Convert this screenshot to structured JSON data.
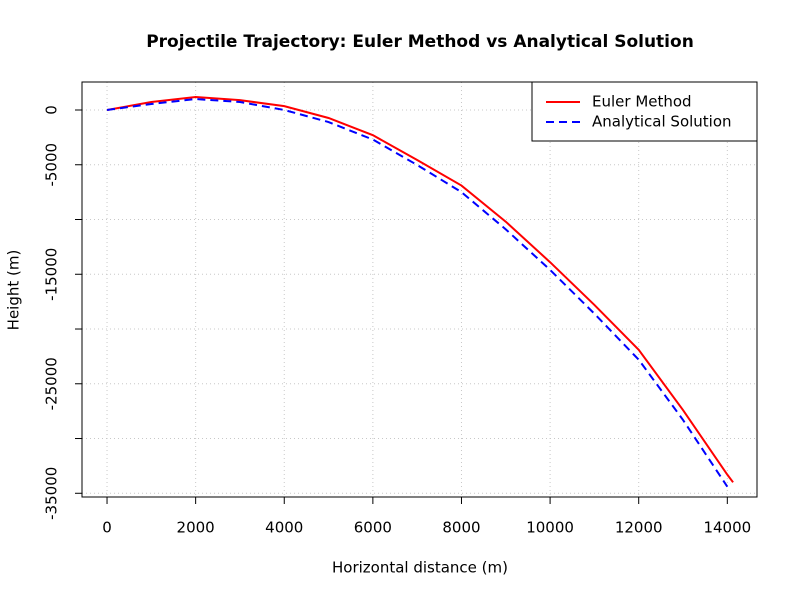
{
  "chart_data": {
    "type": "line",
    "title": "Projectile Trajectory: Euler Method vs Analytical Solution",
    "x_label": "Horizontal distance (m)",
    "y_label": "Height (m)",
    "xlim": [
      -565,
      14670
    ],
    "ylim": [
      -35340,
      2557
    ],
    "xticks": [
      0,
      2000,
      4000,
      6000,
      8000,
      10000,
      12000,
      14000
    ],
    "yticks": [
      0,
      -5000,
      -15000,
      -25000,
      -35000
    ],
    "minor_yticks": [
      -10000,
      -20000,
      -30000
    ],
    "grid": true,
    "legend": "top-right",
    "series": [
      {
        "name": "Euler Method",
        "color": "#ff0000",
        "dash": "solid",
        "x": [
          0,
          1000,
          2000,
          3000,
          4000,
          5000,
          6000,
          7000,
          8000,
          9000,
          10000,
          11000,
          12000,
          13000,
          14000,
          14130
        ],
        "values": [
          0,
          730,
          1190,
          900,
          350,
          -730,
          -2300,
          -4570,
          -6900,
          -10200,
          -13900,
          -17800,
          -21900,
          -27400,
          -33300,
          -34000
        ]
      },
      {
        "name": "Analytical Solution",
        "color": "#0000ff",
        "dash": "dashed",
        "x": [
          0,
          1000,
          2000,
          3000,
          4000,
          5000,
          6000,
          7000,
          8000,
          9000,
          10000,
          11000,
          12000,
          13000,
          14000
        ],
        "values": [
          0,
          550,
          1000,
          730,
          0,
          -1100,
          -2700,
          -5020,
          -7500,
          -10900,
          -14600,
          -18600,
          -22800,
          -28300,
          -34400
        ]
      }
    ]
  }
}
